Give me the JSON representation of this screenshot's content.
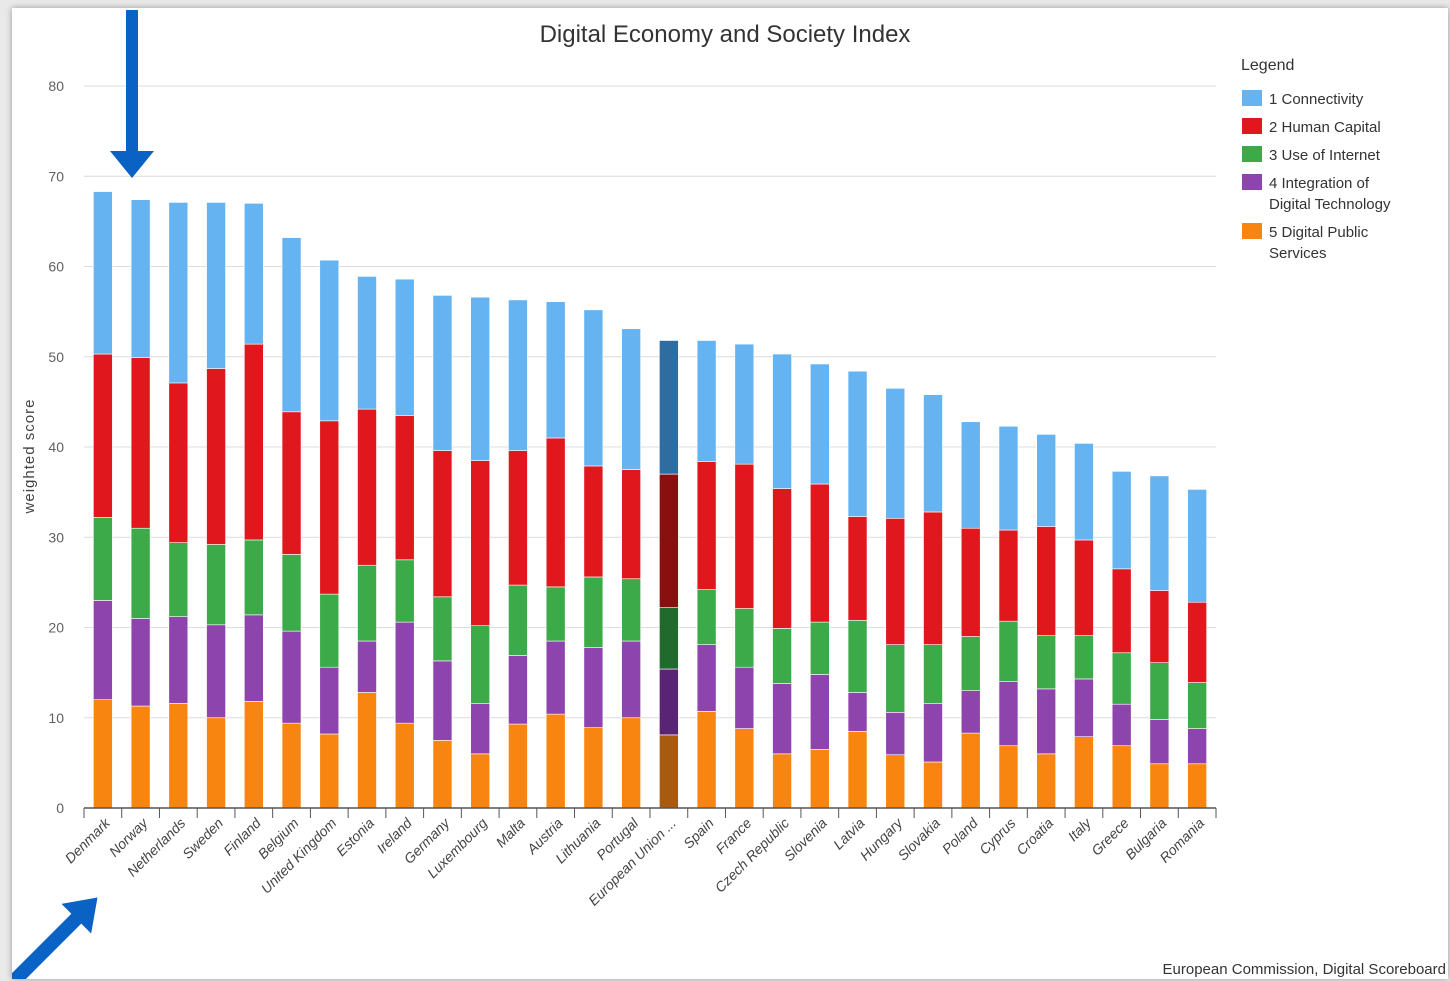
{
  "colors": {
    "connectivity": "#66b3f2",
    "human_capital": "#e0181e",
    "use_of_internet": "#3daa49",
    "integration": "#8e44ad",
    "public_services": "#f7850f",
    "eu_connectivity": "#2f6da0",
    "eu_human_capital": "#8a1010",
    "eu_use_of_internet": "#1f6a2c",
    "eu_integration": "#5a2475",
    "eu_public_services": "#a85a10",
    "arrow": "#0a62c4"
  },
  "credit": "European Commission, Digital Scoreboard",
  "chart_data": {
    "type": "bar",
    "stacked": true,
    "title": "Digital Economy and Society Index",
    "ylabel": "weighted score",
    "ylim": [
      0,
      80
    ],
    "yticks": [
      0,
      10,
      20,
      30,
      40,
      50,
      60,
      70,
      80
    ],
    "grid": true,
    "legend_title": "Legend",
    "legend_position": "top-right",
    "highlight_category": "European Union ...",
    "categories": [
      "Denmark",
      "Norway",
      "Netherlands",
      "Sweden",
      "Finland",
      "Belgium",
      "United Kingdom",
      "Estonia",
      "Ireland",
      "Germany",
      "Luxembourg",
      "Malta",
      "Austria",
      "Lithuania",
      "Portugal",
      "European Union ...",
      "Spain",
      "France",
      "Czech Republic",
      "Slovenia",
      "Latvia",
      "Hungary",
      "Slovakia",
      "Poland",
      "Cyprus",
      "Croatia",
      "Italy",
      "Greece",
      "Bulgaria",
      "Romania"
    ],
    "series": [
      {
        "name": "5 Digital Public Services",
        "color_key": "public_services",
        "values": [
          12.0,
          11.3,
          11.6,
          10.0,
          11.8,
          9.4,
          8.2,
          12.8,
          9.4,
          7.5,
          6.0,
          9.3,
          10.4,
          8.9,
          10.0,
          8.1,
          10.7,
          8.8,
          6.0,
          6.5,
          8.5,
          5.9,
          5.1,
          8.3,
          6.9,
          6.0,
          7.9,
          6.9,
          4.9,
          4.9
        ]
      },
      {
        "name": "4 Integration of Digital Technology",
        "color_key": "integration",
        "values": [
          11.0,
          9.7,
          9.6,
          10.3,
          9.6,
          10.2,
          7.4,
          5.7,
          11.2,
          8.8,
          5.6,
          7.6,
          8.1,
          8.9,
          8.5,
          7.3,
          7.4,
          6.8,
          7.8,
          8.3,
          4.3,
          4.7,
          6.5,
          4.7,
          7.1,
          7.2,
          6.4,
          4.6,
          4.9,
          3.9
        ]
      },
      {
        "name": "3 Use of Internet",
        "color_key": "use_of_internet",
        "values": [
          9.2,
          10.0,
          8.2,
          8.9,
          8.3,
          8.5,
          8.1,
          8.4,
          6.9,
          7.1,
          8.6,
          7.8,
          6.0,
          7.8,
          6.9,
          6.8,
          6.1,
          6.5,
          6.1,
          5.8,
          8.0,
          7.5,
          6.5,
          6.0,
          6.7,
          5.9,
          4.8,
          5.7,
          6.3,
          5.1
        ]
      },
      {
        "name": "2 Human Capital",
        "color_key": "human_capital",
        "values": [
          18.1,
          18.9,
          17.7,
          19.5,
          21.7,
          15.8,
          19.2,
          17.3,
          16.0,
          16.2,
          18.3,
          14.9,
          16.5,
          12.3,
          12.1,
          14.8,
          14.2,
          16.0,
          15.5,
          15.3,
          11.5,
          14.0,
          14.7,
          12.0,
          10.1,
          12.1,
          10.6,
          9.3,
          8.0,
          8.9
        ]
      },
      {
        "name": "1 Connectivity",
        "color_key": "connectivity",
        "values": [
          18.0,
          17.5,
          20.0,
          18.4,
          15.6,
          19.3,
          17.8,
          14.7,
          15.1,
          17.2,
          18.1,
          16.7,
          15.1,
          17.3,
          15.6,
          14.8,
          13.4,
          13.3,
          14.9,
          13.3,
          16.1,
          14.4,
          13.0,
          11.8,
          11.5,
          10.2,
          10.7,
          10.8,
          12.7,
          12.5
        ]
      }
    ]
  }
}
